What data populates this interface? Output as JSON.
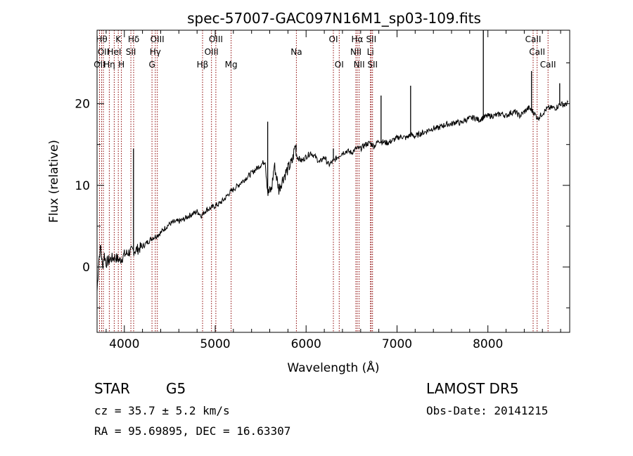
{
  "chart_data": {
    "type": "line",
    "title": "spec-57007-GAC097N16M1_sp03-109.fits",
    "xlabel": "Wavelength (Å)",
    "ylabel": "Flux (relative)",
    "xlim": [
      3700,
      8900
    ],
    "ylim": [
      -8,
      29
    ],
    "xticks": [
      4000,
      5000,
      6000,
      7000,
      8000
    ],
    "yticks": [
      0,
      10,
      20
    ],
    "grid": false,
    "line_color": "#000000",
    "marker_color": "#8b0000",
    "series": [
      {
        "x": [
          3700,
          3720,
          3740,
          3760,
          3780,
          3800,
          3850,
          3900,
          3950,
          4000,
          4050,
          4100,
          4150,
          4200,
          4250,
          4300,
          4350,
          4400,
          4450,
          4500,
          4550,
          4600,
          4650,
          4700,
          4750,
          4800,
          4850,
          4900,
          4950,
          5000,
          5050,
          5100,
          5150,
          5200,
          5250,
          5300,
          5350,
          5400,
          5450,
          5500,
          5550,
          5580,
          5620,
          5650,
          5700,
          5750,
          5800,
          5850,
          5880,
          5900,
          5950,
          6000,
          6050,
          6100,
          6150,
          6200,
          6250,
          6300,
          6350,
          6400,
          6450,
          6500,
          6550,
          6600,
          6650,
          6700,
          6750,
          6800,
          6850,
          6900,
          6950,
          7000,
          7050,
          7100,
          7150,
          7200,
          7250,
          7300,
          7350,
          7400,
          7450,
          7500,
          7550,
          7600,
          7650,
          7700,
          7750,
          7800,
          7850,
          7900,
          7950,
          8000,
          8050,
          8100,
          8150,
          8200,
          8250,
          8300,
          8350,
          8400,
          8450,
          8500,
          8550,
          8600,
          8650,
          8700,
          8750,
          8800,
          8850,
          8880
        ],
        "y": [
          -3,
          1,
          2.5,
          0,
          1.5,
          0.5,
          1,
          1.2,
          0.8,
          1.5,
          1.8,
          2,
          2.2,
          2.5,
          3,
          3.5,
          3.8,
          4.2,
          4.8,
          5.3,
          5.5,
          5.6,
          5.8,
          6.2,
          6.5,
          6.8,
          6.3,
          7,
          7.2,
          7.5,
          7.8,
          8.3,
          9,
          9.5,
          10,
          10.5,
          11,
          11.5,
          12,
          12.5,
          13,
          9,
          9.5,
          12.5,
          9.5,
          11,
          12,
          13,
          15,
          13.5,
          13,
          13.5,
          14,
          13.5,
          12.8,
          13.5,
          12.5,
          13,
          13.5,
          14,
          14.2,
          14,
          14.5,
          14.5,
          15,
          15.2,
          14.8,
          15.5,
          15.3,
          15.2,
          15.5,
          15.8,
          16,
          15.8,
          16.2,
          16,
          16.3,
          16.5,
          16.8,
          17,
          17,
          17.3,
          17.5,
          17.5,
          17.8,
          17.6,
          18,
          18.2,
          18.3,
          18,
          18.3,
          18.5,
          18.5,
          18.6,
          18.8,
          18.5,
          18.9,
          19,
          18.5,
          19,
          19.5,
          19,
          18.2,
          18.8,
          19.4,
          19.5,
          19.5,
          20,
          19.8,
          20.2
        ]
      }
    ],
    "spikes": [
      {
        "x": 4101,
        "y": 14.5
      },
      {
        "x": 5577,
        "y": 17.8
      },
      {
        "x": 5890,
        "y": 15
      },
      {
        "x": 6300,
        "y": 14.5
      },
      {
        "x": 6825,
        "y": 21
      },
      {
        "x": 7150,
        "y": 22.2
      },
      {
        "x": 7950,
        "y": 29
      },
      {
        "x": 8480,
        "y": 24
      },
      {
        "x": 8790,
        "y": 22.5
      }
    ],
    "lines": [
      {
        "x": 3727,
        "label": "OII",
        "row": 3
      },
      {
        "x": 3750,
        "label": "Hθ",
        "row": 1
      },
      {
        "x": 3770,
        "label": "OII",
        "row": 2
      },
      {
        "x": 3835,
        "label": "Hη",
        "row": 3
      },
      {
        "x": 3889,
        "label": "HeI",
        "row": 2
      },
      {
        "x": 3934,
        "label": "K",
        "row": 1
      },
      {
        "x": 3968,
        "label": "H",
        "row": 3
      },
      {
        "x": 4072,
        "label": "SII",
        "row": 2
      },
      {
        "x": 4102,
        "label": "Hδ",
        "row": 1
      },
      {
        "x": 4304,
        "label": "G",
        "row": 3
      },
      {
        "x": 4341,
        "label": "Hγ",
        "row": 2
      },
      {
        "x": 4363,
        "label": "OIII",
        "row": 1
      },
      {
        "x": 4861,
        "label": "Hβ",
        "row": 3
      },
      {
        "x": 4959,
        "label": "OIII",
        "row": 2
      },
      {
        "x": 5007,
        "label": "OIII",
        "row": 1
      },
      {
        "x": 5175,
        "label": "Mg",
        "row": 3
      },
      {
        "x": 5893,
        "label": "Na",
        "row": 2
      },
      {
        "x": 6300,
        "label": "OI",
        "row": 1
      },
      {
        "x": 6364,
        "label": "OI",
        "row": 3
      },
      {
        "x": 6548,
        "label": "NII",
        "row": 2
      },
      {
        "x": 6563,
        "label": "Hα",
        "row": 1
      },
      {
        "x": 6583,
        "label": "NII",
        "row": 3
      },
      {
        "x": 6708,
        "label": "Li",
        "row": 2
      },
      {
        "x": 6716,
        "label": "SII",
        "row": 1
      },
      {
        "x": 6731,
        "label": "SII",
        "row": 3
      },
      {
        "x": 8498,
        "label": "CaII",
        "row": 1
      },
      {
        "x": 8542,
        "label": "CaII",
        "row": 2
      },
      {
        "x": 8662,
        "label": "CaII",
        "row": 3
      }
    ]
  },
  "info": {
    "object_class": "STAR",
    "subclass": "G5",
    "survey": "LAMOST DR5",
    "redshift_line": "cz = 35.7 ± 5.2 km/s",
    "obs_date_line": "Obs-Date: 20141215",
    "coords_line": "RA =  95.69895, DEC =  16.63307"
  }
}
